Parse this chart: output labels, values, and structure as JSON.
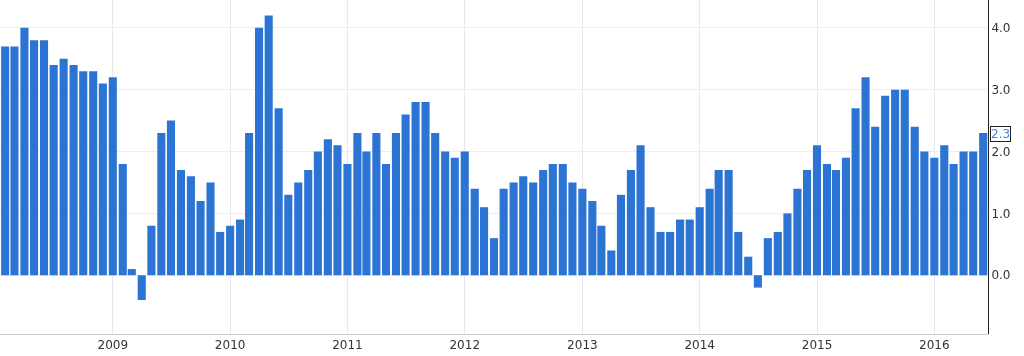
{
  "chart_data": {
    "type": "bar",
    "x": [
      "2008-02",
      "2008-03",
      "2008-04",
      "2008-05",
      "2008-06",
      "2008-07",
      "2008-08",
      "2008-09",
      "2008-10",
      "2008-11",
      "2008-12",
      "2009-01",
      "2009-02",
      "2009-03",
      "2009-04",
      "2009-05",
      "2009-06",
      "2009-07",
      "2009-08",
      "2009-09",
      "2009-10",
      "2009-11",
      "2009-12",
      "2010-01",
      "2010-02",
      "2010-03",
      "2010-04",
      "2010-05",
      "2010-06",
      "2010-07",
      "2010-08",
      "2010-09",
      "2010-10",
      "2010-11",
      "2010-12",
      "2011-01",
      "2011-02",
      "2011-03",
      "2011-04",
      "2011-05",
      "2011-06",
      "2011-07",
      "2011-08",
      "2011-09",
      "2011-10",
      "2011-11",
      "2011-12",
      "2012-01",
      "2012-02",
      "2012-03",
      "2012-04",
      "2012-05",
      "2012-06",
      "2012-07",
      "2012-08",
      "2012-09",
      "2012-10",
      "2012-11",
      "2012-12",
      "2013-01",
      "2013-02",
      "2013-03",
      "2013-04",
      "2013-05",
      "2013-06",
      "2013-07",
      "2013-08",
      "2013-09",
      "2013-10",
      "2013-11",
      "2013-12",
      "2014-01",
      "2014-02",
      "2014-03",
      "2014-04",
      "2014-05",
      "2014-06",
      "2014-07",
      "2014-08",
      "2014-09",
      "2014-10",
      "2014-11",
      "2014-12",
      "2015-01",
      "2015-02",
      "2015-03",
      "2015-04",
      "2015-05",
      "2015-06",
      "2015-07",
      "2015-08",
      "2015-09",
      "2015-10",
      "2015-11",
      "2015-12",
      "2016-01",
      "2016-02",
      "2016-03",
      "2016-04",
      "2016-05",
      "2016-06"
    ],
    "values": [
      3.7,
      3.7,
      4.0,
      3.8,
      3.8,
      3.4,
      3.5,
      3.4,
      3.3,
      3.3,
      3.1,
      3.2,
      1.8,
      0.1,
      -0.4,
      0.8,
      2.3,
      2.5,
      1.7,
      1.6,
      1.2,
      1.5,
      0.7,
      0.8,
      0.9,
      2.3,
      4.0,
      4.2,
      2.7,
      1.3,
      1.5,
      1.7,
      2.0,
      2.2,
      2.1,
      1.8,
      2.3,
      2.0,
      2.3,
      1.8,
      2.3,
      2.6,
      2.8,
      2.8,
      2.3,
      2.0,
      1.9,
      2.0,
      1.4,
      1.1,
      0.6,
      1.4,
      1.5,
      1.6,
      1.5,
      1.7,
      1.8,
      1.8,
      1.5,
      1.4,
      1.2,
      0.8,
      0.4,
      1.3,
      1.7,
      2.1,
      1.1,
      0.7,
      0.7,
      0.9,
      0.9,
      1.1,
      1.4,
      1.7,
      1.7,
      0.7,
      0.3,
      -0.2,
      0.6,
      0.7,
      1.0,
      1.4,
      1.7,
      2.1,
      1.8,
      1.7,
      1.9,
      2.7,
      3.2,
      2.4,
      2.9,
      3.0,
      3.0,
      2.4,
      2.0,
      1.9,
      2.1,
      1.8,
      2.0,
      2.0,
      2.3
    ],
    "color": "#2b74d3",
    "xlim": [
      "2008-01-16",
      "2016-06-16"
    ],
    "xticks": [
      "2009",
      "2010",
      "2011",
      "2012",
      "2013",
      "2014",
      "2015",
      "2016"
    ],
    "ylim": [
      -0.95,
      4.45
    ],
    "yticks": [
      {
        "value": 0,
        "label": "0.0"
      },
      {
        "value": 1,
        "label": "1.0"
      },
      {
        "value": 2,
        "label": "2.0"
      },
      {
        "value": 3,
        "label": "3.0"
      },
      {
        "value": 4,
        "label": "4.0"
      }
    ],
    "grid": true,
    "annotations": [
      "2.3"
    ]
  }
}
